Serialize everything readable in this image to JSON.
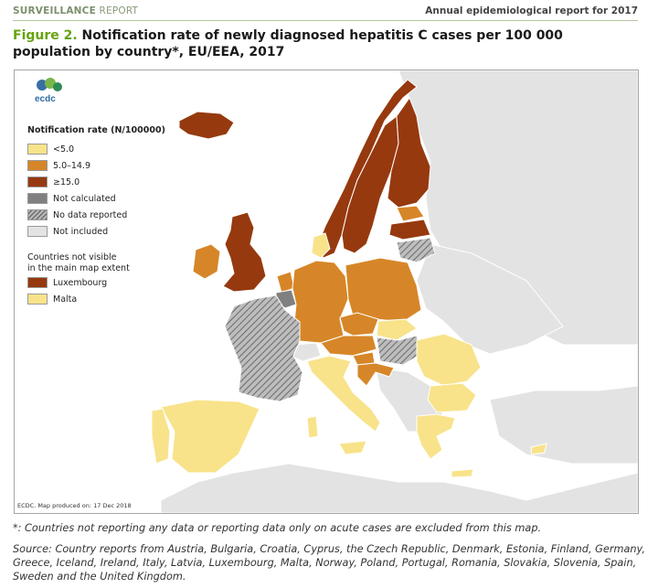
{
  "header": {
    "left_bold": "SURVEILLANCE",
    "left_rest": " REPORT",
    "right": "Annual epidemiological report for 2017"
  },
  "figure": {
    "label": "Figure 2.",
    "title": " Notification rate of newly diagnosed hepatitis C cases per 100 000 population by country*, EU/EEA, 2017"
  },
  "logo": {
    "text": "ecdc"
  },
  "legend": {
    "title": "Notification rate (N/100000)",
    "items": [
      {
        "label": "<5.0",
        "color": "#f8e38a"
      },
      {
        "label": "5.0–14.9",
        "color": "#d68628"
      },
      {
        "label": "≥15.0",
        "color": "#96390f"
      },
      {
        "label": "Not calculated",
        "color": "#808080"
      },
      {
        "label": "No data reported",
        "color": "hatched"
      },
      {
        "label": "Not included",
        "color": "#e3e3e3"
      }
    ],
    "subtitle_line1": "Countries not visible",
    "subtitle_line2": "in the main map extent",
    "small_countries": [
      {
        "label": "Luxembourg",
        "color": "#96390f"
      },
      {
        "label": "Malta",
        "color": "#f8e38a"
      }
    ]
  },
  "map": {
    "produced_note": "ECDC. Map produced on: 17 Dec 2018",
    "colors": {
      "low": "#f8e38a",
      "mid": "#d68628",
      "high": "#96390f",
      "not_calculated": "#808080",
      "not_included": "#e3e3e3",
      "non_eu": "#e6e6e6",
      "sea": "#ffffff",
      "border": "#ffffff"
    }
  },
  "footnote": "*: Countries not reporting any data or reporting data only on acute cases are excluded from this map.",
  "source": "Source: Country reports from Austria, Bulgaria, Croatia, Cyprus, the Czech Republic, Denmark, Estonia, Finland, Germany, Greece, Iceland, Ireland, Italy, Latvia, Luxembourg, Malta, Norway, Poland, Portugal, Romania, Slovakia, Slovenia, Spain, Sweden and the United Kingdom."
}
